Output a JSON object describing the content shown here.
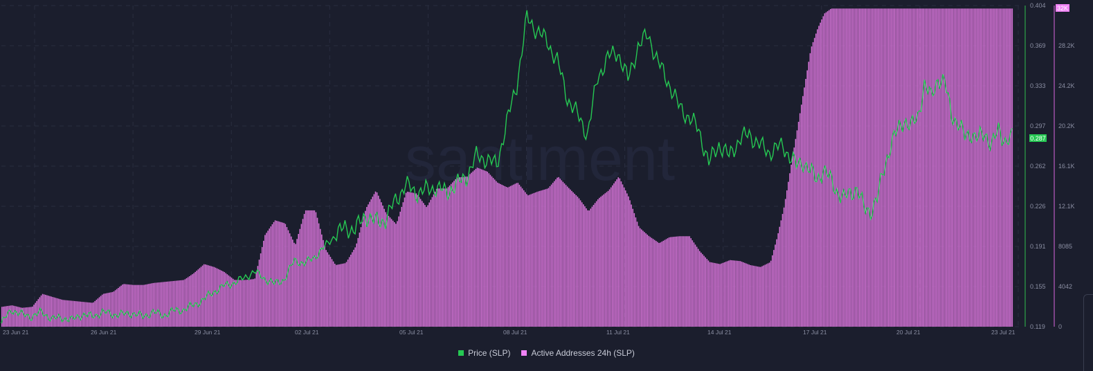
{
  "watermark": "santiment",
  "legend": [
    {
      "label": "Price (SLP)",
      "color": "#26c953"
    },
    {
      "label": "Active Addresses 24h (SLP)",
      "color": "#f083f5"
    }
  ],
  "current_values": {
    "price_badge": "0.287",
    "volume_badge": "32K"
  },
  "colors": {
    "background": "#1b1e2d",
    "price": "#26c953",
    "bars": "#d774d9",
    "bar_edge": "#a455a8",
    "axis_text": "#8b8fa3",
    "grid": "#2a2e40",
    "price_badge_bg": "#26c953",
    "volume_badge_bg": "#f083f5"
  },
  "chart_data": {
    "type": "bar+line",
    "title": "",
    "xlabel": "",
    "x_ticks": [
      "23 Jun 21",
      "26 Jun 21",
      "29 Jun 21",
      "02 Jul 21",
      "05 Jul 21",
      "08 Jul 21",
      "11 Jul 21",
      "14 Jul 21",
      "17 Jul 21",
      "20 Jul 21",
      "23 Jul 21"
    ],
    "y_left_unused": true,
    "price_axis": {
      "label": "Price (SLP)",
      "ticks": [
        "0.404",
        "0.369",
        "0.333",
        "0.297",
        "0.262",
        "0.226",
        "0.191",
        "0.155",
        "0.119"
      ],
      "range": [
        0.119,
        0.404
      ]
    },
    "volume_axis": {
      "label": "Active Addresses 24h (SLP)",
      "ticks": [
        "32.3K",
        "28.2K",
        "24.2K",
        "20.2K",
        "16.1K",
        "12.1K",
        "8085",
        "4042",
        "0"
      ],
      "range": [
        0,
        32300
      ]
    },
    "legend_position": "bottom",
    "grid": true,
    "series": [
      {
        "name": "Active Addresses 24h (SLP)",
        "type": "bar",
        "x_days": [
          0,
          0.3,
          0.6,
          0.9,
          1.2,
          1.5,
          1.8,
          2.1,
          2.4,
          2.7,
          3.0,
          3.3,
          3.6,
          3.9,
          4.2,
          4.5,
          4.8,
          5.1,
          5.4,
          5.7,
          6.0,
          6.3,
          6.6,
          6.9,
          7.2,
          7.5,
          7.8,
          8.1,
          8.4,
          8.7,
          9.0,
          9.3,
          9.6,
          9.9,
          10.2,
          10.5,
          10.8,
          11.1,
          11.4,
          11.7,
          12.0,
          12.3,
          12.6,
          12.9,
          13.2,
          13.5,
          13.8,
          14.1,
          14.4,
          14.7,
          15.0,
          15.3,
          15.6,
          15.9,
          16.2,
          16.5,
          16.8,
          17.1,
          17.4,
          17.7,
          18.0,
          18.3,
          18.6,
          18.9,
          19.2,
          19.5,
          19.8,
          20.1,
          20.4,
          20.7,
          21.0,
          21.3,
          21.6,
          21.9,
          22.2,
          22.5,
          22.8,
          23.0,
          23.2,
          23.4,
          23.6,
          23.8,
          24.0,
          24.2,
          24.4,
          24.6,
          24.8,
          25.0,
          25.2,
          25.4,
          25.6,
          25.8,
          26.0,
          26.2,
          26.4,
          26.6,
          26.8,
          27.0,
          27.2,
          27.4,
          27.6,
          27.8,
          28.0,
          28.2,
          28.4,
          28.6,
          28.8,
          29.0,
          29.2,
          29.4,
          29.6,
          29.7,
          29.8,
          29.9,
          30.0
        ],
        "values": [
          2000,
          2150,
          1900,
          2000,
          3300,
          3000,
          2700,
          2600,
          2500,
          2400,
          3300,
          3500,
          4300,
          4200,
          4200,
          4400,
          4500,
          4600,
          4700,
          5400,
          6300,
          6000,
          5500,
          4700,
          4700,
          4800,
          9200,
          10700,
          10400,
          8200,
          11700,
          11700,
          7800,
          6200,
          6400,
          8100,
          11900,
          13700,
          11400,
          10300,
          13600,
          13400,
          12000,
          13900,
          13900,
          15000,
          15100,
          16000,
          15600,
          14500,
          14000,
          14500,
          13200,
          13600,
          13900,
          15100,
          14000,
          13000,
          11600,
          12900,
          13700,
          15100,
          13000,
          10000,
          9100,
          8400,
          9000,
          9100,
          9100,
          7600,
          6500,
          6300,
          6700,
          6600,
          6200,
          6000,
          6500,
          9000,
          12000,
          16000,
          20000,
          24000,
          28000,
          30000,
          31500,
          32000,
          32000,
          32000,
          32000,
          32000,
          32000,
          32000,
          32000,
          32000,
          32000,
          32000,
          32000,
          32000,
          32000,
          32000,
          32000,
          32000,
          32000,
          32000,
          32000,
          32000,
          32000,
          32000,
          32000,
          32000,
          32000,
          32000,
          32000,
          32000,
          32000
        ]
      },
      {
        "name": "Price (SLP)",
        "type": "line",
        "x_days": [
          0,
          0.3,
          0.6,
          0.9,
          1.2,
          1.5,
          1.8,
          2.1,
          2.4,
          2.7,
          3.0,
          3.3,
          3.6,
          3.9,
          4.2,
          4.5,
          4.8,
          5.1,
          5.4,
          5.7,
          6.0,
          6.3,
          6.6,
          6.9,
          7.2,
          7.5,
          7.8,
          8.1,
          8.4,
          8.7,
          9.0,
          9.3,
          9.6,
          9.9,
          10.2,
          10.5,
          10.8,
          11.1,
          11.4,
          11.7,
          12.0,
          12.3,
          12.6,
          12.9,
          13.2,
          13.5,
          13.8,
          14.1,
          14.4,
          14.7,
          15.0,
          15.3,
          15.6,
          15.9,
          16.2,
          16.5,
          16.8,
          17.1,
          17.4,
          17.7,
          18.0,
          18.3,
          18.6,
          18.9,
          19.2,
          19.5,
          19.8,
          20.1,
          20.4,
          20.7,
          21.0,
          21.3,
          21.6,
          21.9,
          22.2,
          22.5,
          22.8,
          23.0,
          23.2,
          23.4,
          23.6,
          23.8,
          24.0,
          24.2,
          24.4,
          24.6,
          24.8,
          25.0,
          25.2,
          25.4,
          25.6,
          25.8,
          26.0,
          26.2,
          26.4,
          26.6,
          26.8,
          27.0,
          27.2,
          27.4,
          27.6,
          27.8,
          28.0,
          28.2,
          28.4,
          28.6,
          28.8,
          29.0,
          29.2,
          29.4,
          29.6,
          29.7,
          29.8,
          29.9,
          30.0
        ],
        "values": [
          0.122,
          0.134,
          0.13,
          0.128,
          0.132,
          0.126,
          0.127,
          0.125,
          0.13,
          0.128,
          0.132,
          0.13,
          0.13,
          0.131,
          0.128,
          0.132,
          0.129,
          0.133,
          0.134,
          0.138,
          0.143,
          0.15,
          0.155,
          0.158,
          0.162,
          0.168,
          0.162,
          0.157,
          0.161,
          0.178,
          0.175,
          0.181,
          0.19,
          0.2,
          0.207,
          0.205,
          0.218,
          0.212,
          0.214,
          0.231,
          0.245,
          0.238,
          0.24,
          0.243,
          0.238,
          0.245,
          0.252,
          0.27,
          0.268,
          0.262,
          0.3,
          0.334,
          0.393,
          0.382,
          0.372,
          0.355,
          0.322,
          0.307,
          0.29,
          0.34,
          0.358,
          0.363,
          0.338,
          0.368,
          0.378,
          0.353,
          0.336,
          0.315,
          0.305,
          0.294,
          0.264,
          0.281,
          0.27,
          0.285,
          0.29,
          0.28,
          0.274,
          0.277,
          0.28,
          0.27,
          0.262,
          0.266,
          0.257,
          0.25,
          0.258,
          0.25,
          0.24,
          0.232,
          0.238,
          0.242,
          0.224,
          0.222,
          0.232,
          0.26,
          0.28,
          0.293,
          0.303,
          0.296,
          0.305,
          0.334,
          0.322,
          0.34,
          0.335,
          0.308,
          0.3,
          0.287,
          0.291,
          0.286,
          0.29,
          0.282,
          0.292,
          0.287,
          0.285,
          0.287,
          0.287
        ]
      }
    ]
  }
}
